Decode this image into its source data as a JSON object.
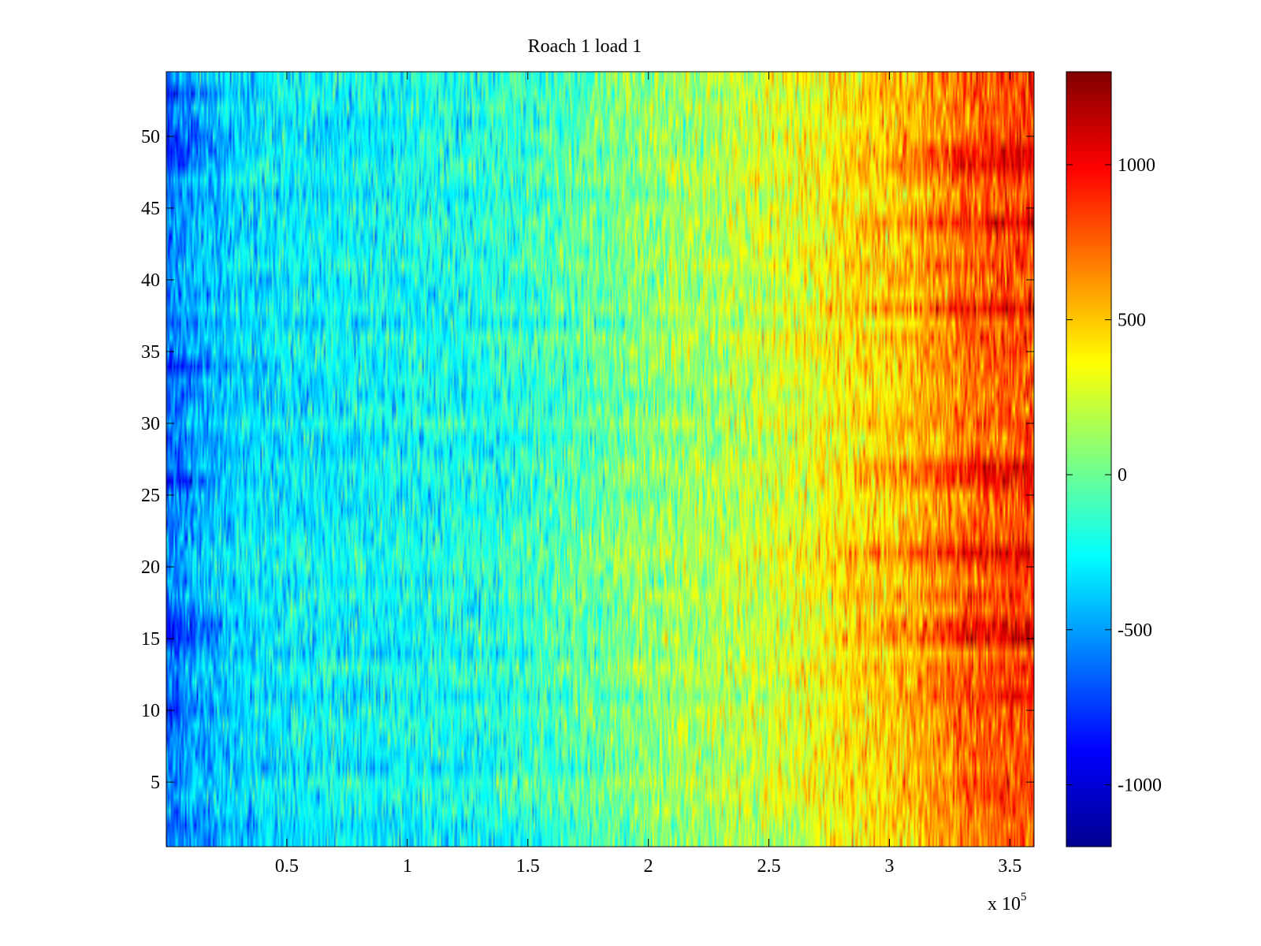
{
  "chart_data": {
    "type": "heatmap",
    "title": "Roach 1 load 1",
    "xlabel": "",
    "ylabel": "",
    "x_multiplier_label": {
      "base": "x 10",
      "exponent": "5"
    },
    "xlim": [
      0,
      3.6
    ],
    "ylim": [
      0.5,
      54.5
    ],
    "x_ticks": [
      0.5,
      1,
      1.5,
      2,
      2.5,
      3,
      3.5
    ],
    "x_tick_labels": [
      "0.5",
      "1",
      "1.5",
      "2",
      "2.5",
      "3",
      "3.5"
    ],
    "y_ticks": [
      5,
      10,
      15,
      20,
      25,
      30,
      35,
      40,
      45,
      50
    ],
    "y_tick_labels": [
      "5",
      "10",
      "15",
      "20",
      "25",
      "30",
      "35",
      "40",
      "45",
      "50"
    ],
    "rows": 54,
    "colormap": "jet",
    "color_range": [
      -1200,
      1300
    ],
    "colorbar_ticks": [
      1000,
      500,
      0,
      -500,
      -1000
    ],
    "colorbar_tick_labels": [
      "1000",
      "500",
      "0",
      "-500",
      "-1000"
    ],
    "column_profile": {
      "x": [
        0,
        0.1,
        0.3,
        0.6,
        1.0,
        1.4,
        1.7,
        2.0,
        2.3,
        2.6,
        2.8,
        3.1,
        3.3,
        3.5,
        3.6
      ],
      "mean_value": [
        -600,
        -480,
        -340,
        -280,
        -250,
        -180,
        -60,
        80,
        160,
        280,
        400,
        520,
        700,
        800,
        820
      ]
    },
    "hot_bands_rows": [
      11,
      15,
      16,
      21,
      26,
      27,
      38,
      44,
      48,
      49
    ],
    "cold_bands_rows": [
      10,
      15,
      16,
      26,
      34,
      48,
      49,
      50,
      53
    ]
  }
}
